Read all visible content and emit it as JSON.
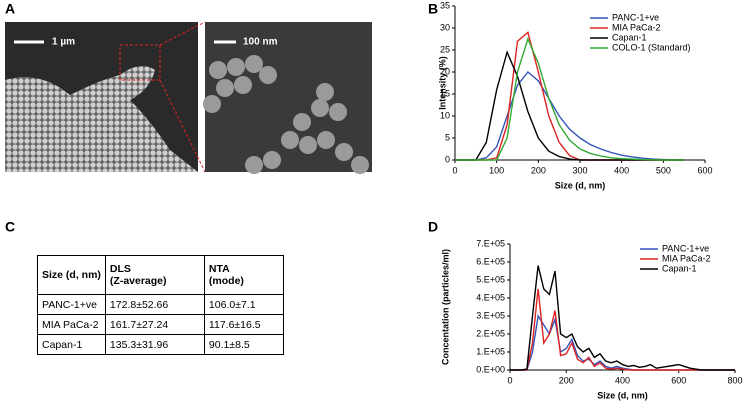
{
  "panels": [
    "A",
    "B",
    "C",
    "D"
  ],
  "images": {
    "left_scale": "1 µm",
    "right_scale": "100 nm"
  },
  "table": {
    "header": [
      [
        "Size (d, nm)"
      ],
      [
        "DLS",
        "(Z-average)"
      ],
      [
        "NTA",
        "(mode)"
      ]
    ],
    "rows": [
      [
        "PANC-1+ve",
        "172.8±52.66",
        "106.0±7.1"
      ],
      [
        "MIA PaCa-2",
        "161.7±27.24",
        "117.6±16.5"
      ],
      [
        "Capan-1",
        "135.3±31.96",
        "90.1±8.5"
      ]
    ]
  },
  "chart_data": [
    {
      "type": "line",
      "x_label": "Size (d, nm)",
      "y_label": "Intensity (%)",
      "legend": "upper right",
      "xlim": [
        0,
        600
      ],
      "xticks": [
        0,
        100,
        200,
        300,
        400,
        500,
        600
      ],
      "ylim": [
        0,
        35
      ],
      "yticks": [
        0,
        5,
        10,
        15,
        20,
        25,
        30,
        35
      ],
      "x": [
        0,
        25,
        50,
        75,
        100,
        125,
        150,
        175,
        200,
        225,
        250,
        275,
        300,
        325,
        350,
        375,
        400,
        425,
        450,
        475,
        500,
        525,
        550
      ],
      "series": [
        {
          "name": "PANC-1+ve",
          "color": "#3355bb",
          "values": [
            0,
            0,
            0,
            0.5,
            3,
            10,
            17,
            20,
            18,
            14,
            10,
            7,
            5,
            3.5,
            2.5,
            1.7,
            1.1,
            0.7,
            0.4,
            0.2,
            0.1,
            0,
            0
          ]
        },
        {
          "name": "MIA PaCa-2",
          "color": "#dd2222",
          "values": [
            0,
            0,
            0,
            0,
            0.5,
            8,
            27,
            29,
            20,
            10,
            4,
            1,
            0,
            0,
            0,
            0,
            0,
            0,
            0,
            0,
            0,
            0,
            0
          ]
        },
        {
          "name": "Capan-1",
          "color": "#000000",
          "values": [
            0,
            0,
            0,
            4,
            16,
            24.5,
            19,
            11,
            5,
            2,
            0.8,
            0.2,
            0,
            0,
            0,
            0,
            0,
            0,
            0,
            0,
            0,
            0,
            0
          ]
        },
        {
          "name": "COLO-1 (Standard)",
          "color": "#33aa33",
          "values": [
            0,
            0,
            0,
            0,
            0,
            5,
            20,
            27.5,
            22,
            14,
            8,
            4.5,
            2.5,
            1.5,
            0.9,
            0.5,
            0.3,
            0.2,
            0.1,
            0.05,
            0,
            0,
            0
          ]
        }
      ]
    },
    {
      "type": "line",
      "x_label": "Size (d, nm)",
      "y_label": "Concentation (particles/ml)",
      "legend": "upper right",
      "xlim": [
        0,
        800
      ],
      "xticks": [
        0,
        200,
        400,
        600,
        800
      ],
      "ylim": [
        0,
        700000
      ],
      "yticks": [
        {
          "value": 0,
          "label": "0.E+00"
        },
        {
          "value": 100000,
          "label": "1.E+05"
        },
        {
          "value": 200000,
          "label": "2.E+05"
        },
        {
          "value": 300000,
          "label": "3.E+05"
        },
        {
          "value": 400000,
          "label": "4.E+05"
        },
        {
          "value": 500000,
          "label": "5.E+05"
        },
        {
          "value": 600000,
          "label": "6.E+05"
        },
        {
          "value": 700000,
          "label": "7.E+05"
        }
      ],
      "x": [
        0,
        20,
        40,
        60,
        80,
        100,
        120,
        140,
        160,
        180,
        200,
        220,
        240,
        260,
        280,
        300,
        320,
        340,
        360,
        380,
        400,
        420,
        440,
        460,
        480,
        500,
        520,
        540,
        560,
        580,
        600,
        620,
        640,
        660,
        680,
        700,
        720,
        740,
        760,
        780,
        800
      ],
      "series": [
        {
          "name": "PANC-1+ve",
          "color": "#3355bb",
          "values": [
            0,
            0,
            0,
            0,
            100000,
            300000,
            250000,
            200000,
            280000,
            100000,
            120000,
            170000,
            80000,
            50000,
            60000,
            30000,
            50000,
            20000,
            10000,
            20000,
            10000,
            5000,
            0,
            0,
            0,
            0,
            0,
            0,
            0,
            0,
            0,
            0,
            0,
            0,
            0,
            0,
            0,
            0,
            0,
            0,
            0
          ]
        },
        {
          "name": "MIA PaCa-2",
          "color": "#dd2222",
          "values": [
            0,
            0,
            0,
            0,
            150000,
            450000,
            150000,
            200000,
            330000,
            80000,
            90000,
            150000,
            60000,
            40000,
            70000,
            20000,
            40000,
            10000,
            5000,
            10000,
            5000,
            0,
            0,
            0,
            0,
            0,
            0,
            0,
            0,
            0,
            0,
            0,
            0,
            0,
            0,
            0,
            0,
            0,
            0,
            0,
            0
          ]
        },
        {
          "name": "Capan-1",
          "color": "#000000",
          "values": [
            0,
            0,
            0,
            5000,
            300000,
            580000,
            450000,
            420000,
            550000,
            200000,
            180000,
            200000,
            130000,
            100000,
            120000,
            70000,
            90000,
            50000,
            40000,
            50000,
            30000,
            20000,
            25000,
            15000,
            20000,
            30000,
            10000,
            15000,
            20000,
            25000,
            30000,
            20000,
            10000,
            5000,
            0,
            0,
            0,
            0,
            0,
            0,
            0
          ]
        }
      ]
    }
  ]
}
